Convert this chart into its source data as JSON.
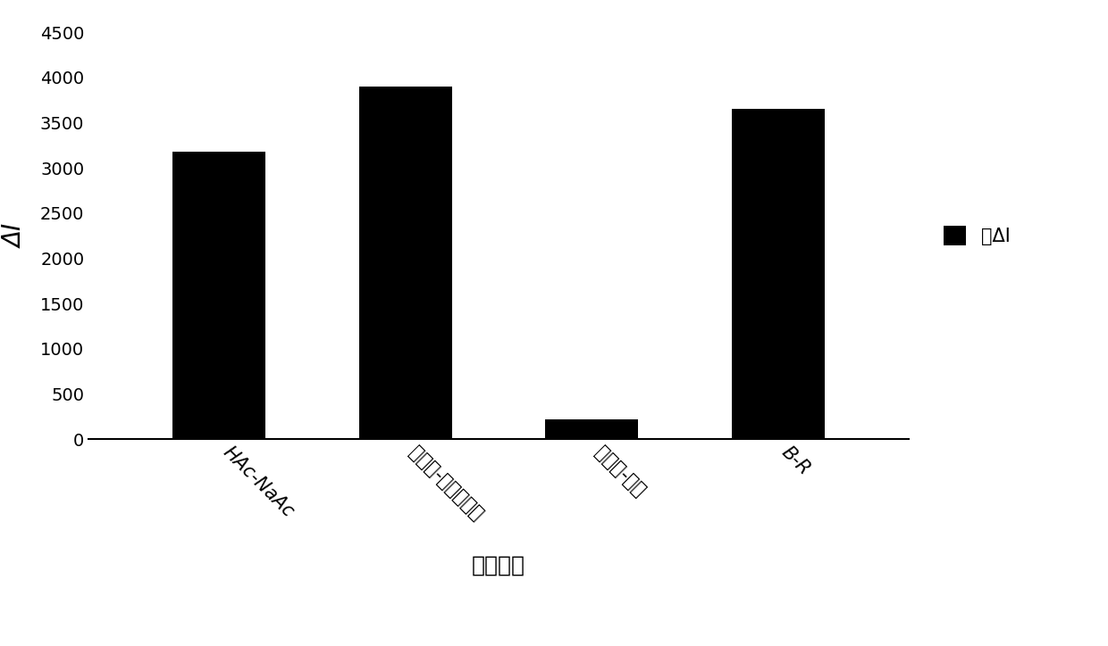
{
  "categories": [
    "HAc-NaAc",
    "柠檬酸-磷酸氢二鈢",
    "甘氨酸-盐酸",
    "B-R"
  ],
  "values": [
    3180,
    3900,
    220,
    3650
  ],
  "bar_color": "#000000",
  "ylabel": "ΔI",
  "xlabel": "缓冲溶液",
  "legend_label": "总ΔI",
  "ylim": [
    0,
    4500
  ],
  "yticks": [
    0,
    500,
    1000,
    1500,
    2000,
    2500,
    3000,
    3500,
    4000,
    4500
  ],
  "background_color": "#ffffff",
  "bar_width": 0.5
}
